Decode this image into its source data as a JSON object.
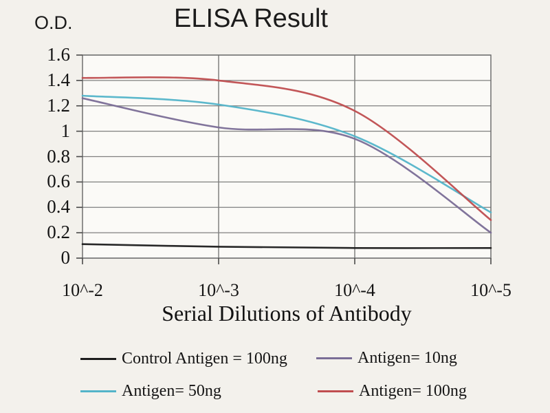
{
  "chart_data": {
    "type": "line",
    "title": "ELISA Result",
    "ylabel": "O.D.",
    "xlabel": "Serial Dilutions of Antibody",
    "categories": [
      "10^-2",
      "10^-3",
      "10^-4",
      "10^-5"
    ],
    "ylim": [
      0,
      1.6
    ],
    "ytick_step": 0.2,
    "yticks": [
      "1.6",
      "1.4",
      "1.2",
      "1",
      "0.8",
      "0.6",
      "0.4",
      "0.2",
      "0"
    ],
    "grid": true,
    "legend_position": "below-chart, 2 columns",
    "line_style": "smooth, no markers",
    "series": [
      {
        "name": "Control Antigen = 100ng",
        "color": "#1c1c1c",
        "values": [
          0.11,
          0.09,
          0.08,
          0.08
        ]
      },
      {
        "name": "Antigen= 10ng",
        "color": "#7a6d96",
        "values": [
          1.26,
          1.03,
          0.94,
          0.2
        ]
      },
      {
        "name": "Antigen= 50ng",
        "color": "#53b4c9",
        "values": [
          1.28,
          1.21,
          0.96,
          0.36
        ]
      },
      {
        "name": "Antigen= 100ng",
        "color": "#bf4d4f",
        "values": [
          1.42,
          1.4,
          1.16,
          0.3
        ]
      }
    ],
    "colors": {
      "background": "#f3f1ec",
      "plot_background": "#fbfaf7",
      "grid": "#7f7f7f",
      "border": "#6f6f6f",
      "tick": "#4a4a4a",
      "text": "#141414"
    }
  }
}
